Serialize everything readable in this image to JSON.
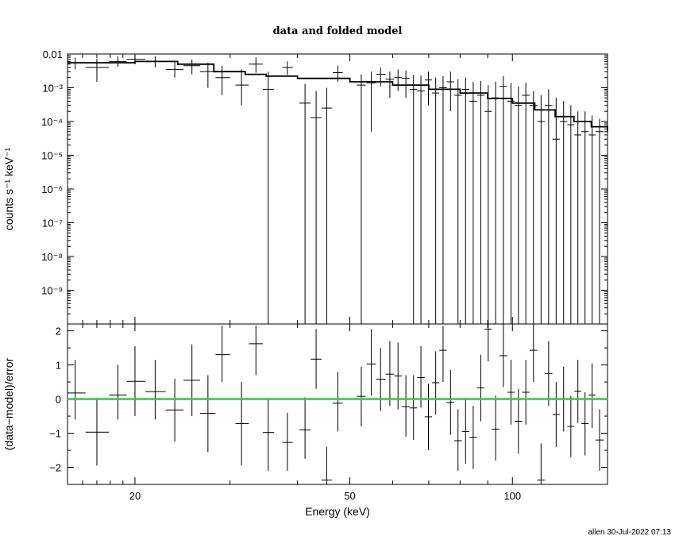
{
  "chart_data": [
    {
      "type": "scatter",
      "title": "data and folded model",
      "xlabel": "",
      "ylabel": "counts s⁻¹ keV⁻¹",
      "xscale": "log",
      "yscale": "log",
      "xlim": [
        15,
        150
      ],
      "ylim": [
        1e-10,
        0.01
      ],
      "xtick_labels": [],
      "ytick_labels": [
        "10⁻⁹",
        "10⁻⁸",
        "10⁻⁷",
        "10⁻⁶",
        "10⁻⁵",
        "10⁻⁴",
        "10⁻³",
        "0.01"
      ],
      "data": [
        {
          "x": 15.5,
          "xlo": 15.0,
          "xhi": 16.2,
          "y": 0.0055,
          "ylo": 0.0035,
          "yhi": 0.0078
        },
        {
          "x": 17.0,
          "xlo": 16.2,
          "xhi": 17.9,
          "y": 0.004,
          "ylo": 0.0015,
          "yhi": 0.0072
        },
        {
          "x": 18.6,
          "xlo": 17.9,
          "xhi": 19.3,
          "y": 0.006,
          "ylo": 0.0042,
          "yhi": 0.0085
        },
        {
          "x": 20.0,
          "xlo": 19.3,
          "xhi": 20.9,
          "y": 0.007,
          "ylo": 0.005,
          "yhi": 0.0095
        },
        {
          "x": 21.8,
          "xlo": 20.9,
          "xhi": 22.8,
          "y": 0.006,
          "ylo": 0.004,
          "yhi": 0.0085
        },
        {
          "x": 23.7,
          "xlo": 22.8,
          "xhi": 24.6,
          "y": 0.0035,
          "ylo": 0.002,
          "yhi": 0.0058
        },
        {
          "x": 25.5,
          "xlo": 24.6,
          "xhi": 26.4,
          "y": 0.0045,
          "ylo": 0.0025,
          "yhi": 0.0068
        },
        {
          "x": 27.3,
          "xlo": 26.4,
          "xhi": 28.2,
          "y": 0.003,
          "ylo": 0.001,
          "yhi": 0.0055
        },
        {
          "x": 29.0,
          "xlo": 28.2,
          "xhi": 30.0,
          "y": 0.002,
          "ylo": 0.0006,
          "yhi": 0.0045
        },
        {
          "x": 31.5,
          "xlo": 30.7,
          "xhi": 32.5,
          "y": 0.0012,
          "ylo": 0.0003,
          "yhi": 0.0035
        },
        {
          "x": 33.5,
          "xlo": 32.5,
          "xhi": 34.5,
          "y": 0.005,
          "ylo": 0.0028,
          "yhi": 0.008
        },
        {
          "x": 35.3,
          "xlo": 34.5,
          "xhi": 36.2,
          "y": 0.0009,
          "ylo": 1e-11,
          "yhi": 0.003
        },
        {
          "x": 38.3,
          "xlo": 37.5,
          "xhi": 39.2,
          "y": 0.004,
          "ylo": 0.0024,
          "yhi": 0.006
        },
        {
          "x": 41.3,
          "xlo": 40.3,
          "xhi": 42.3,
          "y": 0.00035,
          "ylo": 1e-11,
          "yhi": 0.0013
        },
        {
          "x": 43.3,
          "xlo": 42.3,
          "xhi": 44.3,
          "y": 0.00013,
          "ylo": 1e-11,
          "yhi": 0.0008
        },
        {
          "x": 45.3,
          "xlo": 44.3,
          "xhi": 46.3,
          "y": 0.00025,
          "ylo": 1e-11,
          "yhi": 0.001
        },
        {
          "x": 47.5,
          "xlo": 46.5,
          "xhi": 48.5,
          "y": 0.0028,
          "ylo": 0.0015,
          "yhi": 0.0045
        },
        {
          "x": 52.5,
          "xlo": 51.5,
          "xhi": 53.5,
          "y": 0.0012,
          "ylo": 1e-11,
          "yhi": 0.0025
        },
        {
          "x": 54.8,
          "xlo": 53.7,
          "xhi": 55.9,
          "y": 0.0014,
          "ylo": 5e-05,
          "yhi": 0.003
        },
        {
          "x": 57.0,
          "xlo": 55.9,
          "xhi": 58.2,
          "y": 0.0025,
          "ylo": 0.0011,
          "yhi": 0.004
        },
        {
          "x": 59.3,
          "xlo": 58.2,
          "xhi": 60.4,
          "y": 0.0018,
          "ylo": 0.0005,
          "yhi": 0.003
        },
        {
          "x": 61.4,
          "xlo": 60.4,
          "xhi": 62.4,
          "y": 0.002,
          "ylo": 0.0008,
          "yhi": 0.0035
        },
        {
          "x": 63.5,
          "xlo": 62.4,
          "xhi": 64.5,
          "y": 0.0019,
          "ylo": 0.0005,
          "yhi": 0.0032
        },
        {
          "x": 65.6,
          "xlo": 64.5,
          "xhi": 66.6,
          "y": 0.0009,
          "ylo": 1e-11,
          "yhi": 0.0024
        },
        {
          "x": 67.7,
          "xlo": 66.6,
          "xhi": 68.8,
          "y": 0.0008,
          "ylo": 1e-11,
          "yhi": 0.0023
        },
        {
          "x": 69.9,
          "xlo": 68.8,
          "xhi": 71.0,
          "y": 0.0017,
          "ylo": 0.0003,
          "yhi": 0.003
        },
        {
          "x": 72.1,
          "xlo": 71.0,
          "xhi": 73.2,
          "y": 0.0007,
          "ylo": 1e-11,
          "yhi": 0.002
        },
        {
          "x": 74.4,
          "xlo": 73.2,
          "xhi": 75.6,
          "y": 0.001,
          "ylo": 1e-11,
          "yhi": 0.0022
        },
        {
          "x": 76.8,
          "xlo": 75.6,
          "xhi": 78.0,
          "y": 0.0015,
          "ylo": 0.0002,
          "yhi": 0.003
        },
        {
          "x": 79.3,
          "xlo": 78.0,
          "xhi": 80.6,
          "y": 0.0006,
          "ylo": 1e-11,
          "yhi": 0.0018
        },
        {
          "x": 81.9,
          "xlo": 80.6,
          "xhi": 83.2,
          "y": 0.0009,
          "ylo": 1e-11,
          "yhi": 0.002
        },
        {
          "x": 84.6,
          "xlo": 83.2,
          "xhi": 86.0,
          "y": 0.0004,
          "ylo": 1e-11,
          "yhi": 0.0015
        },
        {
          "x": 87.4,
          "xlo": 86.0,
          "xhi": 88.8,
          "y": 0.0006,
          "ylo": 1e-11,
          "yhi": 0.0016
        },
        {
          "x": 90.2,
          "xlo": 88.8,
          "xhi": 91.6,
          "y": 0.0002,
          "ylo": 1e-11,
          "yhi": 0.0012
        },
        {
          "x": 93.1,
          "xlo": 91.6,
          "xhi": 94.6,
          "y": 0.0005,
          "ylo": 1e-11,
          "yhi": 0.0015
        },
        {
          "x": 96.2,
          "xlo": 94.6,
          "xhi": 97.8,
          "y": 0.0011,
          "ylo": 1e-11,
          "yhi": 0.0022
        },
        {
          "x": 99.4,
          "xlo": 97.8,
          "xhi": 101.0,
          "y": 0.0004,
          "ylo": 1e-11,
          "yhi": 0.0014
        },
        {
          "x": 102.6,
          "xlo": 101.0,
          "xhi": 104.2,
          "y": 0.0003,
          "ylo": 1e-11,
          "yhi": 0.0011
        },
        {
          "x": 105.9,
          "xlo": 104.2,
          "xhi": 107.6,
          "y": 0.0006,
          "ylo": 1e-11,
          "yhi": 0.0014
        },
        {
          "x": 109.4,
          "xlo": 107.6,
          "xhi": 111.2,
          "y": 0.0003,
          "ylo": 1e-11,
          "yhi": 0.0008
        },
        {
          "x": 113.0,
          "xlo": 111.2,
          "xhi": 114.8,
          "y": 0.0001,
          "ylo": 1e-11,
          "yhi": 0.0006
        },
        {
          "x": 116.7,
          "xlo": 114.8,
          "xhi": 118.6,
          "y": 0.0003,
          "ylo": 1e-11,
          "yhi": 0.0009
        },
        {
          "x": 120.5,
          "xlo": 118.6,
          "xhi": 122.4,
          "y": 3e-05,
          "ylo": 1e-11,
          "yhi": 0.0005
        },
        {
          "x": 124.4,
          "xlo": 122.4,
          "xhi": 126.4,
          "y": 0.0001,
          "ylo": 1e-11,
          "yhi": 0.0004
        },
        {
          "x": 128.3,
          "xlo": 126.4,
          "xhi": 130.2,
          "y": 8e-05,
          "ylo": 1e-11,
          "yhi": 0.0003
        },
        {
          "x": 132.2,
          "xlo": 130.2,
          "xhi": 134.2,
          "y": 4e-05,
          "ylo": 1e-11,
          "yhi": 0.0002
        },
        {
          "x": 136.3,
          "xlo": 134.2,
          "xhi": 138.4,
          "y": 5e-05,
          "ylo": 1e-11,
          "yhi": 0.0002
        },
        {
          "x": 140.5,
          "xlo": 138.4,
          "xhi": 142.6,
          "y": 4e-05,
          "ylo": 1e-11,
          "yhi": 0.00015
        },
        {
          "x": 145.0,
          "xlo": 142.6,
          "xhi": 147.6,
          "y": 5e-05,
          "ylo": 1e-11,
          "yhi": 0.00012
        }
      ],
      "model": [
        [
          15.0,
          0.0055
        ],
        [
          20.0,
          0.006
        ],
        [
          24.0,
          0.005
        ],
        [
          28.0,
          0.003
        ],
        [
          32.0,
          0.0025
        ],
        [
          35.0,
          0.0022
        ],
        [
          40.0,
          0.0019
        ],
        [
          50.0,
          0.0015
        ],
        [
          60.0,
          0.0012
        ],
        [
          70.0,
          0.0009
        ],
        [
          80.0,
          0.0007
        ],
        [
          90.0,
          0.00048
        ],
        [
          100.0,
          0.00035
        ],
        [
          110.0,
          0.00022
        ],
        [
          120.0,
          0.00014
        ],
        [
          130.0,
          0.0001
        ],
        [
          140.0,
          7e-05
        ],
        [
          150.0,
          5e-05
        ]
      ]
    },
    {
      "type": "scatter",
      "title": "",
      "xlabel": "Energy (keV)",
      "ylabel": "(data−model)/error",
      "xscale": "log",
      "xlim": [
        15,
        150
      ],
      "ylim": [
        -2.5,
        2.2
      ],
      "xtick_labels": [
        "20",
        "50",
        "100"
      ],
      "xtick_values": [
        20,
        50,
        100
      ],
      "ytick_labels": [
        "−2",
        "−1",
        "0",
        "1",
        "2"
      ],
      "ytick_values": [
        -2,
        -1,
        0,
        1,
        2
      ],
      "zero_line_color": "#33cc33",
      "residuals": [
        {
          "x": 15.5,
          "xlo": 15.0,
          "xhi": 16.2,
          "y": 0.18,
          "ylo": -0.6,
          "yhi": 1.15
        },
        {
          "x": 17.0,
          "xlo": 16.2,
          "xhi": 17.9,
          "y": -0.97,
          "ylo": -1.95,
          "yhi": 0.0
        },
        {
          "x": 18.6,
          "xlo": 17.9,
          "xhi": 19.3,
          "y": 0.12,
          "ylo": -0.6,
          "yhi": 1.0
        },
        {
          "x": 20.0,
          "xlo": 19.3,
          "xhi": 20.9,
          "y": 0.52,
          "ylo": -0.5,
          "yhi": 1.55
        },
        {
          "x": 21.8,
          "xlo": 20.9,
          "xhi": 22.8,
          "y": 0.22,
          "ylo": -0.6,
          "yhi": 1.15
        },
        {
          "x": 23.7,
          "xlo": 22.8,
          "xhi": 24.6,
          "y": -0.32,
          "ylo": -1.25,
          "yhi": 0.6
        },
        {
          "x": 25.5,
          "xlo": 24.6,
          "xhi": 26.4,
          "y": 0.55,
          "ylo": -0.5,
          "yhi": 1.6
        },
        {
          "x": 27.3,
          "xlo": 26.4,
          "xhi": 28.2,
          "y": -0.42,
          "ylo": -1.55,
          "yhi": 0.7
        },
        {
          "x": 29.0,
          "xlo": 28.2,
          "xhi": 30.0,
          "y": 1.3,
          "ylo": 0.5,
          "yhi": 2.15
        },
        {
          "x": 31.5,
          "xlo": 30.7,
          "xhi": 32.5,
          "y": -0.72,
          "ylo": -1.95,
          "yhi": 0.5
        },
        {
          "x": 33.5,
          "xlo": 32.5,
          "xhi": 34.5,
          "y": 1.62,
          "ylo": 0.7,
          "yhi": 2.15
        },
        {
          "x": 35.3,
          "xlo": 34.5,
          "xhi": 36.2,
          "y": -0.98,
          "ylo": -2.1,
          "yhi": 0.0
        },
        {
          "x": 38.3,
          "xlo": 37.5,
          "xhi": 39.2,
          "y": -1.27,
          "ylo": -2.1,
          "yhi": -0.4
        },
        {
          "x": 41.3,
          "xlo": 40.3,
          "xhi": 42.3,
          "y": -0.9,
          "ylo": -1.75,
          "yhi": 0.05
        },
        {
          "x": 43.3,
          "xlo": 42.3,
          "xhi": 44.3,
          "y": 1.17,
          "ylo": 0.3,
          "yhi": 2.05
        },
        {
          "x": 45.3,
          "xlo": 44.3,
          "xhi": 46.3,
          "y": -2.37,
          "ylo": -2.5,
          "yhi": -1.4
        },
        {
          "x": 47.5,
          "xlo": 46.5,
          "xhi": 48.5,
          "y": -0.12,
          "ylo": -0.95,
          "yhi": 0.8
        },
        {
          "x": 52.5,
          "xlo": 51.5,
          "xhi": 53.5,
          "y": 0.08,
          "ylo": -0.8,
          "yhi": 0.95
        },
        {
          "x": 54.8,
          "xlo": 53.7,
          "xhi": 55.9,
          "y": 1.03,
          "ylo": 0.1,
          "yhi": 2.05
        },
        {
          "x": 57.0,
          "xlo": 55.9,
          "xhi": 58.2,
          "y": 0.58,
          "ylo": -0.35,
          "yhi": 1.5
        },
        {
          "x": 59.3,
          "xlo": 58.2,
          "xhi": 60.4,
          "y": 0.73,
          "ylo": -0.2,
          "yhi": 1.7
        },
        {
          "x": 61.4,
          "xlo": 60.4,
          "xhi": 62.4,
          "y": 0.68,
          "ylo": -0.3,
          "yhi": 1.65
        },
        {
          "x": 63.5,
          "xlo": 62.4,
          "xhi": 64.5,
          "y": -0.22,
          "ylo": -1.1,
          "yhi": 0.7
        },
        {
          "x": 65.6,
          "xlo": 64.5,
          "xhi": 66.6,
          "y": -0.26,
          "ylo": -1.2,
          "yhi": 0.7
        },
        {
          "x": 67.7,
          "xlo": 66.6,
          "xhi": 68.8,
          "y": 0.63,
          "ylo": -0.25,
          "yhi": 1.55
        },
        {
          "x": 69.9,
          "xlo": 68.8,
          "xhi": 71.0,
          "y": -0.52,
          "ylo": -1.5,
          "yhi": 0.45
        },
        {
          "x": 72.1,
          "xlo": 71.0,
          "xhi": 73.2,
          "y": 0.48,
          "ylo": -0.45,
          "yhi": 1.4
        },
        {
          "x": 74.4,
          "xlo": 73.2,
          "xhi": 75.6,
          "y": 1.43,
          "ylo": 0.5,
          "yhi": 2.15
        },
        {
          "x": 76.8,
          "xlo": 75.6,
          "xhi": 78.0,
          "y": -0.1,
          "ylo": -1.05,
          "yhi": 0.85
        },
        {
          "x": 79.3,
          "xlo": 78.0,
          "xhi": 80.6,
          "y": -1.22,
          "ylo": -2.1,
          "yhi": -0.3
        },
        {
          "x": 81.9,
          "xlo": 80.6,
          "xhi": 83.2,
          "y": -0.95,
          "ylo": -1.9,
          "yhi": 0.0
        },
        {
          "x": 84.6,
          "xlo": 83.2,
          "xhi": 86.0,
          "y": -1.12,
          "ylo": -2.05,
          "yhi": -0.2
        },
        {
          "x": 87.4,
          "xlo": 86.0,
          "xhi": 88.8,
          "y": 0.33,
          "ylo": -0.65,
          "yhi": 1.3
        },
        {
          "x": 90.2,
          "xlo": 88.8,
          "xhi": 91.6,
          "y": 2.05,
          "ylo": 1.1,
          "yhi": 2.2
        },
        {
          "x": 93.1,
          "xlo": 91.6,
          "xhi": 94.6,
          "y": -0.88,
          "ylo": -1.8,
          "yhi": 0.1
        },
        {
          "x": 96.2,
          "xlo": 94.6,
          "xhi": 97.8,
          "y": 1.27,
          "ylo": 0.35,
          "yhi": 2.2
        },
        {
          "x": 99.4,
          "xlo": 97.8,
          "xhi": 101.0,
          "y": 0.2,
          "ylo": -0.75,
          "yhi": 1.15
        },
        {
          "x": 102.6,
          "xlo": 101.0,
          "xhi": 104.2,
          "y": -0.65,
          "ylo": -1.6,
          "yhi": 0.3
        },
        {
          "x": 105.9,
          "xlo": 104.2,
          "xhi": 107.6,
          "y": 0.2,
          "ylo": -0.75,
          "yhi": 1.15
        },
        {
          "x": 109.4,
          "xlo": 107.6,
          "xhi": 111.2,
          "y": 1.43,
          "ylo": 0.5,
          "yhi": 2.2
        },
        {
          "x": 113.0,
          "xlo": 111.2,
          "xhi": 114.8,
          "y": -2.37,
          "ylo": -2.5,
          "yhi": -1.3
        },
        {
          "x": 116.7,
          "xlo": 114.8,
          "xhi": 118.6,
          "y": 0.75,
          "ylo": -0.2,
          "yhi": 1.7
        },
        {
          "x": 120.5,
          "xlo": 118.6,
          "xhi": 122.4,
          "y": -0.45,
          "ylo": -1.4,
          "yhi": 0.5
        },
        {
          "x": 124.4,
          "xlo": 122.4,
          "xhi": 126.4,
          "y": 0.0,
          "ylo": -0.95,
          "yhi": 0.95
        },
        {
          "x": 128.3,
          "xlo": 126.4,
          "xhi": 130.2,
          "y": -0.8,
          "ylo": -1.7,
          "yhi": 0.1
        },
        {
          "x": 132.2,
          "xlo": 130.2,
          "xhi": 134.2,
          "y": 0.23,
          "ylo": -0.7,
          "yhi": 1.15
        },
        {
          "x": 136.3,
          "xlo": 134.2,
          "xhi": 138.4,
          "y": -0.72,
          "ylo": -1.65,
          "yhi": 0.2
        },
        {
          "x": 140.5,
          "xlo": 138.4,
          "xhi": 142.6,
          "y": 0.12,
          "ylo": -0.85,
          "yhi": 1.05
        },
        {
          "x": 145.0,
          "xlo": 142.6,
          "xhi": 147.6,
          "y": -1.2,
          "ylo": -2.1,
          "yhi": -0.3
        }
      ]
    }
  ],
  "footer": {
    "stamp": "allen 30-Jul-2022 07:13"
  }
}
